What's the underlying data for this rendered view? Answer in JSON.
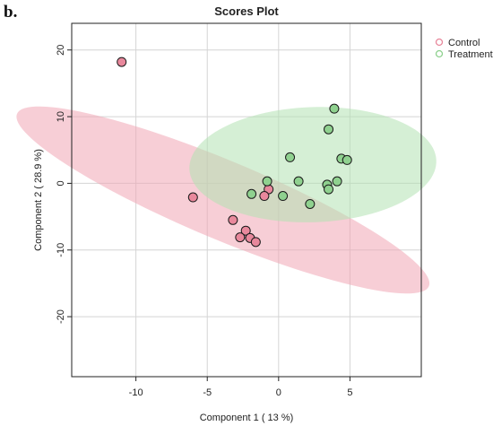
{
  "panel_label": "b.",
  "chart_data": {
    "type": "scatter",
    "title": "Scores Plot",
    "xlabel": "Component 1 ( 13 %)",
    "ylabel": "Component 2 ( 28.9 %)",
    "xlim": [
      -14.5,
      10
    ],
    "ylim": [
      -29,
      24
    ],
    "x_ticks": [
      -10,
      -5,
      0,
      5
    ],
    "y_ticks": [
      -20,
      -10,
      0,
      10,
      20
    ],
    "grid": true,
    "legend_position": "top-right",
    "series": [
      {
        "name": "Control",
        "color": "#e8889c",
        "ellipse_color": "#f0a5b4",
        "points": [
          {
            "x": -11.0,
            "y": 18.2
          },
          {
            "x": -6.0,
            "y": -2.1
          },
          {
            "x": -3.2,
            "y": -5.5
          },
          {
            "x": -2.3,
            "y": -7.1
          },
          {
            "x": -2.7,
            "y": -8.1
          },
          {
            "x": -2.0,
            "y": -8.2
          },
          {
            "x": -1.6,
            "y": -8.8
          },
          {
            "x": -0.7,
            "y": -0.9
          },
          {
            "x": -1.0,
            "y": -1.9
          }
        ],
        "ellipse": {
          "cx": -3.9,
          "cy": -2.5,
          "rx": 19.6,
          "ry": 4.7,
          "angle_deg": -44
        }
      },
      {
        "name": "Treatment",
        "color": "#8fd18f",
        "ellipse_color": "#b3e2b3",
        "points": [
          {
            "x": 3.9,
            "y": 11.2
          },
          {
            "x": 3.5,
            "y": 8.1
          },
          {
            "x": 0.8,
            "y": 3.9
          },
          {
            "x": 4.4,
            "y": 3.7
          },
          {
            "x": 4.8,
            "y": 3.5
          },
          {
            "x": -0.8,
            "y": 0.3
          },
          {
            "x": 1.4,
            "y": 0.3
          },
          {
            "x": 4.1,
            "y": 0.3
          },
          {
            "x": 3.4,
            "y": -0.2
          },
          {
            "x": 3.5,
            "y": -0.9
          },
          {
            "x": -1.9,
            "y": -1.6
          },
          {
            "x": 0.3,
            "y": -1.9
          },
          {
            "x": 2.2,
            "y": -3.1
          }
        ],
        "ellipse": {
          "cx": 2.4,
          "cy": 2.8,
          "rx": 8.4,
          "ry": 8.9,
          "angle_deg": -45
        }
      }
    ]
  }
}
